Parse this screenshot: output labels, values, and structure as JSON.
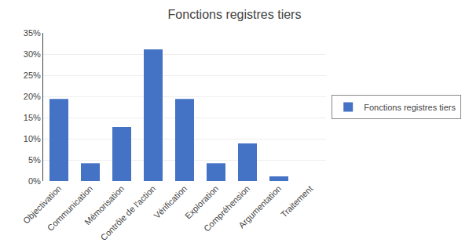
{
  "chart_data": {
    "type": "bar",
    "title": "Fonctions registres tiers",
    "categories": [
      "Objectivation",
      "Communication",
      "Mémorisation",
      "Contrôle de l'action",
      "Vérification",
      "Exploration",
      "Compréhension",
      "Argumentation",
      "Traitement"
    ],
    "series": [
      {
        "name": "Fonctions registres tiers",
        "color": "#4472C4",
        "values": [
          0.194,
          0.042,
          0.128,
          0.311,
          0.194,
          0.042,
          0.089,
          0.011,
          0.0
        ]
      }
    ],
    "ylim": [
      0,
      0.35
    ],
    "yticks": [
      {
        "value": 0.0,
        "label": "0%"
      },
      {
        "value": 0.05,
        "label": "5%"
      },
      {
        "value": 0.1,
        "label": "10%"
      },
      {
        "value": 0.15,
        "label": "15%"
      },
      {
        "value": 0.2,
        "label": "20%"
      },
      {
        "value": 0.25,
        "label": "25%"
      },
      {
        "value": 0.3,
        "label": "30%"
      },
      {
        "value": 0.35,
        "label": "35%"
      }
    ],
    "grid": true,
    "legend": "right"
  }
}
